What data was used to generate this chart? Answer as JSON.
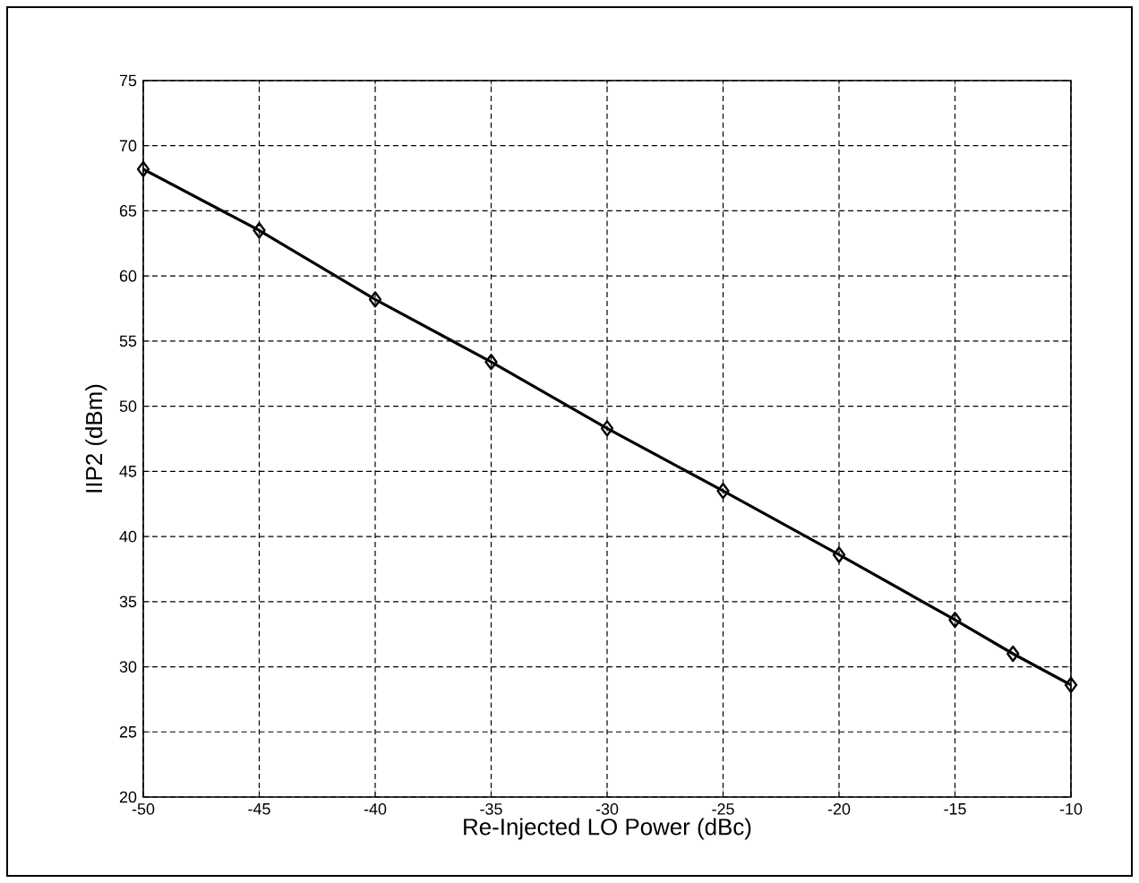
{
  "chart_data": {
    "type": "line",
    "xlabel": "Re-Injected LO Power (dBc)",
    "ylabel": "IIP2 (dBm)",
    "x": [
      -50,
      -45,
      -40,
      -35,
      -30,
      -25,
      -20,
      -15,
      -12.5,
      -10
    ],
    "series": [
      {
        "color": "#000000",
        "values": [
          68.2,
          63.5,
          58.2,
          53.4,
          48.3,
          43.5,
          38.6,
          33.6,
          31.0,
          28.6
        ]
      }
    ],
    "xlim": [
      -50,
      -10
    ],
    "xticks": [
      -50,
      -45,
      -40,
      -35,
      -30,
      -25,
      -20,
      -15,
      -10
    ],
    "ylim": [
      20,
      75
    ],
    "yticks": [
      20,
      25,
      30,
      35,
      40,
      45,
      50,
      55,
      60,
      65,
      70,
      75
    ],
    "grid": true,
    "marker": "diamond",
    "line_style": "solid"
  }
}
